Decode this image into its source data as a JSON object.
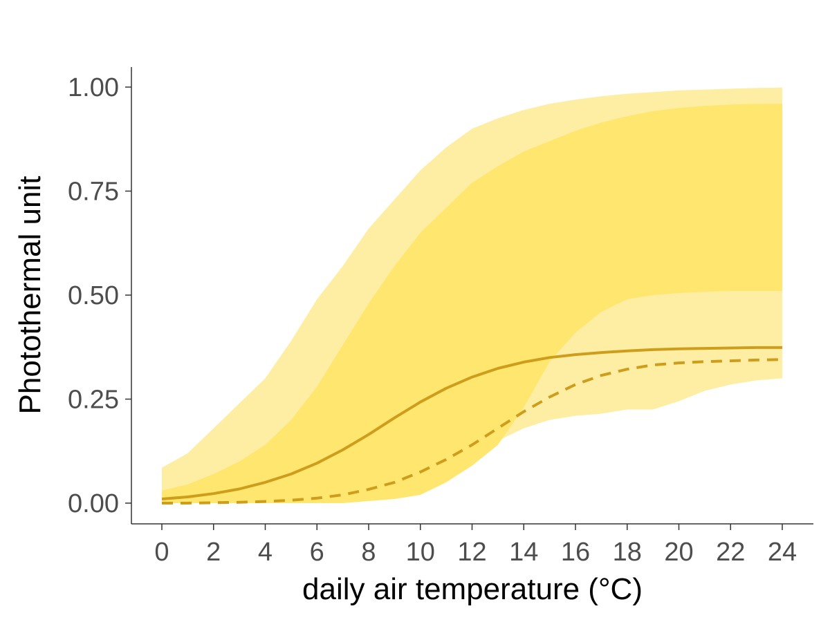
{
  "chart_data": {
    "type": "area",
    "title": "",
    "xlabel": "daily air temperature (°C)",
    "ylabel": "Photothermal unit",
    "xlim": [
      0,
      24
    ],
    "ylim": [
      0,
      1
    ],
    "x_ticks": [
      0,
      2,
      4,
      6,
      8,
      10,
      12,
      14,
      16,
      18,
      20,
      22,
      24
    ],
    "x_tick_labels": [
      "0",
      "2",
      "4",
      "6",
      "8",
      "10",
      "12",
      "14",
      "16",
      "18",
      "20",
      "22",
      "24"
    ],
    "y_ticks": [
      0,
      0.25,
      0.5,
      0.75,
      1.0
    ],
    "y_tick_labels": [
      "0.00",
      "0.25",
      "0.50",
      "0.75",
      "1.00"
    ],
    "grid": false,
    "x": [
      0,
      1,
      2,
      3,
      4,
      5,
      6,
      7,
      8,
      9,
      10,
      11,
      12,
      13,
      14,
      15,
      16,
      17,
      18,
      19,
      20,
      21,
      22,
      23,
      24
    ],
    "bands": [
      {
        "name": "outer interval",
        "color": "#fdeea3",
        "lower": [
          0.0,
          0.0,
          0.0,
          0.0,
          0.0,
          0.0,
          0.003,
          0.005,
          0.01,
          0.02,
          0.035,
          0.06,
          0.1,
          0.15,
          0.18,
          0.2,
          0.21,
          0.215,
          0.225,
          0.225,
          0.245,
          0.27,
          0.285,
          0.295,
          0.3
        ],
        "upper": [
          0.085,
          0.12,
          0.18,
          0.24,
          0.3,
          0.39,
          0.49,
          0.57,
          0.66,
          0.73,
          0.8,
          0.855,
          0.9,
          0.925,
          0.945,
          0.96,
          0.97,
          0.978,
          0.984,
          0.988,
          0.992,
          0.994,
          0.996,
          0.998,
          0.999
        ]
      },
      {
        "name": "inner interval",
        "color": "#fee66f",
        "lower": [
          0.0,
          0.0,
          0.0,
          0.0,
          0.0,
          0.0,
          0.0,
          0.0,
          0.005,
          0.01,
          0.02,
          0.05,
          0.09,
          0.14,
          0.23,
          0.34,
          0.41,
          0.46,
          0.49,
          0.5,
          0.505,
          0.508,
          0.51,
          0.51,
          0.51
        ],
        "upper": [
          0.03,
          0.045,
          0.07,
          0.1,
          0.14,
          0.2,
          0.28,
          0.38,
          0.48,
          0.57,
          0.65,
          0.71,
          0.77,
          0.81,
          0.845,
          0.87,
          0.895,
          0.915,
          0.93,
          0.942,
          0.95,
          0.955,
          0.958,
          0.96,
          0.96
        ]
      }
    ],
    "series": [
      {
        "name": "solid line",
        "style": "solid",
        "color": "#cf9d1c",
        "values": [
          0.01,
          0.015,
          0.023,
          0.034,
          0.05,
          0.07,
          0.096,
          0.128,
          0.165,
          0.205,
          0.243,
          0.276,
          0.303,
          0.324,
          0.339,
          0.35,
          0.357,
          0.362,
          0.366,
          0.369,
          0.371,
          0.372,
          0.373,
          0.374,
          0.374
        ]
      },
      {
        "name": "dashed line",
        "style": "dashed",
        "color": "#cf9d1c",
        "values": [
          0.0,
          0.0,
          0.001,
          0.002,
          0.004,
          0.007,
          0.012,
          0.02,
          0.033,
          0.05,
          0.075,
          0.105,
          0.14,
          0.18,
          0.22,
          0.255,
          0.285,
          0.307,
          0.322,
          0.332,
          0.337,
          0.34,
          0.342,
          0.344,
          0.345
        ]
      }
    ]
  }
}
